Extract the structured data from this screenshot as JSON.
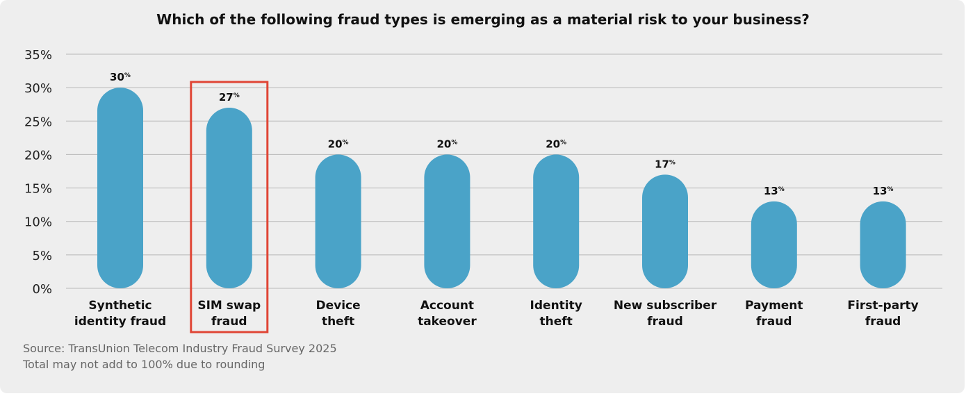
{
  "chart_data": {
    "type": "bar",
    "title": "Which of the following fraud types is emerging as a material risk to your business?",
    "categories": [
      [
        "Synthetic",
        "identity fraud"
      ],
      [
        "SIM swap",
        "fraud"
      ],
      [
        "Device",
        "theft"
      ],
      [
        "Account",
        "takeover"
      ],
      [
        "Identity",
        "theft"
      ],
      [
        "New subscriber",
        "fraud"
      ],
      [
        "Payment",
        "fraud"
      ],
      [
        "First-party",
        "fraud"
      ]
    ],
    "values": [
      30,
      27,
      20,
      20,
      20,
      17,
      13,
      13
    ],
    "value_suffix": "%",
    "ylim": [
      0,
      35
    ],
    "yticks": [
      0,
      5,
      10,
      15,
      20,
      25,
      30,
      35
    ],
    "ytick_labels": [
      "0%",
      "5%",
      "10%",
      "15%",
      "20%",
      "25%",
      "30%",
      "35%"
    ],
    "grid": true,
    "highlight_index": 1,
    "bar_color": "#4aa3c8",
    "highlight_color": "#e04535",
    "grid_color": "#b8b8b8"
  },
  "footnotes": {
    "source": "Source: TransUnion Telecom Industry Fraud Survey 2025",
    "note": "Total may not add to 100% due to rounding"
  }
}
